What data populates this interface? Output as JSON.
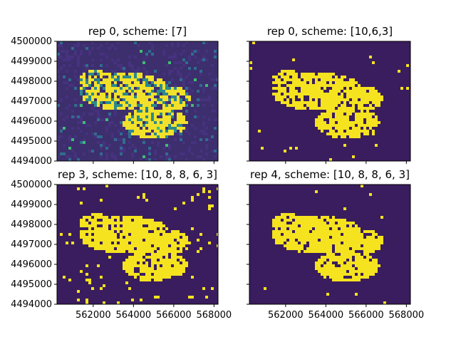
{
  "chart_data": [
    {
      "type": "heatmap",
      "title": "rep 0, scheme: [7]",
      "xlabel": "",
      "ylabel": "",
      "xlim": [
        560200,
        568200
      ],
      "ylim": [
        4494000,
        4500000
      ],
      "yticks": [
        "4494000",
        "4495000",
        "4496000",
        "4497000",
        "4498000",
        "4499000",
        "4500000"
      ],
      "xticks": [],
      "colormap": "viridis",
      "style": "continuous",
      "background": "#3d2e6e",
      "foreground": "#f2e12a",
      "mid": "#2c8a8c"
    },
    {
      "type": "heatmap",
      "title": "rep 0, scheme: [10,6,3]",
      "xlabel": "",
      "ylabel": "",
      "xlim": [
        560200,
        568200
      ],
      "ylim": [
        4494000,
        4500000
      ],
      "yticks": [],
      "xticks": [],
      "colormap": "viridis",
      "style": "binary",
      "background": "#3a1d5e",
      "foreground": "#f5e31f"
    },
    {
      "type": "heatmap",
      "title": "rep 3, scheme: [10, 8, 8, 6, 3]",
      "xlabel": "",
      "ylabel": "",
      "xlim": [
        560200,
        568200
      ],
      "ylim": [
        4494000,
        4500000
      ],
      "yticks": [
        "4494000",
        "4495000",
        "4496000",
        "4497000",
        "4498000",
        "4499000",
        "4500000"
      ],
      "xticks": [
        "562000",
        "564000",
        "566000",
        "568000"
      ],
      "colormap": "viridis",
      "style": "binary-noisy",
      "background": "#3a1d5e",
      "foreground": "#f5e31f"
    },
    {
      "type": "heatmap",
      "title": "rep 4, scheme: [10, 8, 8, 6, 3]",
      "xlabel": "",
      "ylabel": "",
      "xlim": [
        560200,
        568200
      ],
      "ylim": [
        4494000,
        4500000
      ],
      "yticks": [],
      "xticks": [
        "562000",
        "564000",
        "566000",
        "568000"
      ],
      "colormap": "viridis",
      "style": "binary",
      "background": "#3a1d5e",
      "foreground": "#f5e31f"
    }
  ]
}
